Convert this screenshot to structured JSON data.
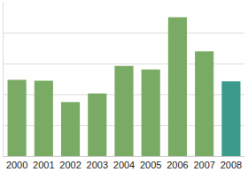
{
  "chart_data": {
    "type": "bar",
    "categories": [
      "2000",
      "2001",
      "2002",
      "2003",
      "2004",
      "2005",
      "2006",
      "2007",
      "2008"
    ],
    "values": [
      2.47,
      2.44,
      1.75,
      2.03,
      2.92,
      2.81,
      4.5,
      3.39,
      2.42
    ],
    "colors": [
      "#7aab64",
      "#7aab64",
      "#7aab64",
      "#7aab64",
      "#7aab64",
      "#7aab64",
      "#7aab64",
      "#7aab64",
      "#3a9a8c"
    ],
    "ylim": [
      0,
      5
    ],
    "yticks": [
      0,
      1,
      2,
      3,
      4,
      5
    ],
    "grid": true,
    "tick_labels": "x"
  }
}
